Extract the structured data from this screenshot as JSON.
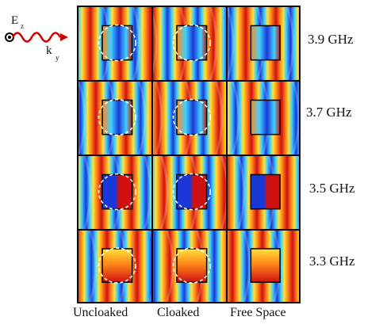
{
  "legend": {
    "field_label": "E",
    "field_sub": "z",
    "wave_label": "k",
    "wave_sub": "y"
  },
  "columns": [
    "Uncloaked",
    "Cloaked",
    "Free Space"
  ],
  "rows": [
    {
      "frequency": "3.9 GHz"
    },
    {
      "frequency": "3.7 GHz"
    },
    {
      "frequency": "3.5 GHz"
    },
    {
      "frequency": "3.3 GHz"
    }
  ],
  "colors": {
    "red": "#d01010",
    "dark_red": "#8a0000",
    "orange": "#ff8a1a",
    "yellow": "#ffe23a",
    "cyan": "#3fd2ff",
    "blue": "#1a38d8",
    "dark_blue": "#00008a",
    "wave_icon": "#d00000"
  },
  "icons": [
    "field-out-of-page-icon",
    "wave-arrow-icon"
  ]
}
